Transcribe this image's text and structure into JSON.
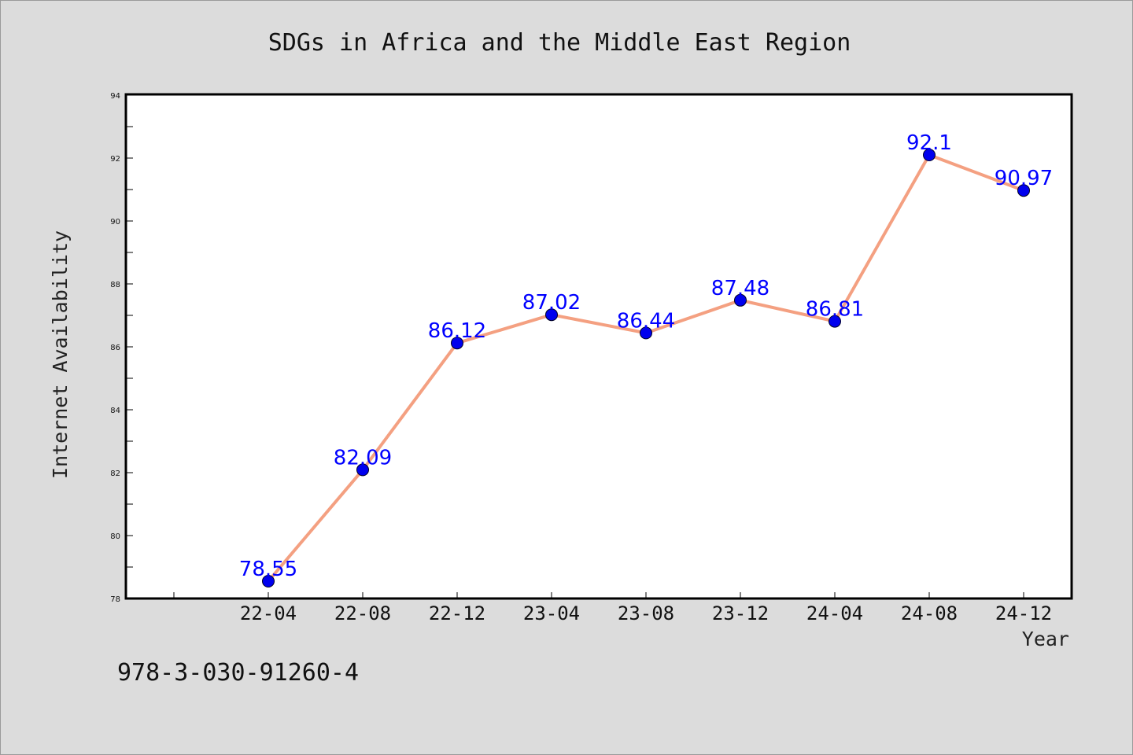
{
  "chart_data": {
    "type": "line",
    "title": "SDGs in Africa and the Middle East Region",
    "xlabel": "Year",
    "ylabel": "Internet Availability",
    "categories": [
      "22-04",
      "22-08",
      "22-12",
      "23-04",
      "23-08",
      "23-12",
      "24-04",
      "24-08",
      "24-12"
    ],
    "series": [
      {
        "values": [
          78.55,
          82.09,
          86.12,
          87.02,
          86.44,
          87.48,
          86.81,
          92.1,
          90.97
        ],
        "labels": [
          "78.55",
          "82.09",
          "86.12",
          "87.02",
          "86.44",
          "87.48",
          "86.81",
          "92.1",
          "90.97"
        ],
        "line_color": "#f4a081",
        "marker_color": "#0000ee",
        "label_color": "#0000ff"
      }
    ],
    "ylim": [
      78,
      94
    ],
    "yticks": [
      "78",
      "80",
      "82",
      "84",
      "86",
      "88",
      "90",
      "92",
      "94"
    ],
    "grid": false,
    "legend": "none"
  },
  "footer_note": "978-3-030-91260-4",
  "colors": {
    "background": "#dcdcdc",
    "plot_background": "#ffffff",
    "axes_border": "#000000"
  }
}
